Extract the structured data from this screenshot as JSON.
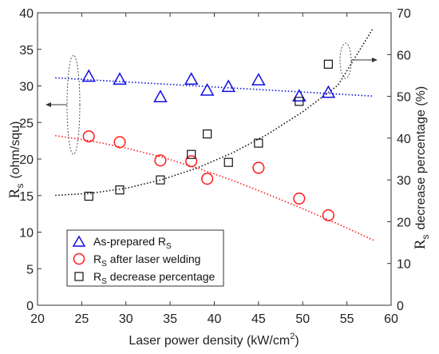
{
  "chart_data": {
    "type": "scatter",
    "xlabel": "Laser power density (kW/cm",
    "xlabel_sup": "2",
    "xlabel_end": ")",
    "ylabel_left": {
      "main": "R",
      "sub": "s",
      "rest": "(ohm/squ)"
    },
    "ylabel_right": {
      "main": "R",
      "sub": "s",
      "rest": "decrease percentage (%)"
    },
    "xlim": [
      20,
      60
    ],
    "ylim_left": [
      0,
      40
    ],
    "ylim_right": [
      0,
      70
    ],
    "xticks": [
      20,
      25,
      30,
      35,
      40,
      45,
      50,
      55,
      60
    ],
    "yticks_left": [
      0,
      5,
      10,
      15,
      20,
      25,
      30,
      35,
      40
    ],
    "yticks_right": [
      0,
      10,
      20,
      30,
      40,
      50,
      60,
      70
    ],
    "legend_position": "bottom-left",
    "series": [
      {
        "name": "As-prepared R",
        "name_sub": "S",
        "axis": "left",
        "marker": "triangle",
        "color": "#1010e0",
        "x": [
          25.8,
          29.3,
          33.9,
          37.4,
          39.2,
          41.6,
          45.0,
          49.6,
          52.9
        ],
        "y": [
          31.3,
          30.9,
          28.5,
          30.9,
          29.4,
          29.9,
          30.8,
          28.6,
          29.1
        ],
        "fit": {
          "x": [
            22,
            58
          ],
          "y": [
            31.1,
            28.6
          ],
          "style": "dotted"
        }
      },
      {
        "name": "R",
        "name_sub": "S",
        "name_rest": "after laser welding",
        "axis": "left",
        "marker": "circle",
        "color": "#ff1a1a",
        "x": [
          25.8,
          29.3,
          33.9,
          37.4,
          39.2,
          45.0,
          49.6,
          52.9
        ],
        "y": [
          23.1,
          22.3,
          19.8,
          19.7,
          17.3,
          18.8,
          14.6,
          12.3
        ],
        "fit": {
          "x": [
            22,
            26,
            30,
            34,
            38,
            42,
            46,
            50,
            54,
            58
          ],
          "y": [
            23.2,
            22.5,
            21.5,
            20.3,
            18.8,
            17.1,
            15.2,
            13.2,
            11.1,
            8.9
          ],
          "style": "dotted"
        }
      },
      {
        "name": "R",
        "name_sub": "S",
        "name_rest": "decrease percentage",
        "axis": "right",
        "marker": "square",
        "color": "#111111",
        "x": [
          25.8,
          29.3,
          33.9,
          37.4,
          39.2,
          41.6,
          45.0,
          49.6,
          52.9
        ],
        "y": [
          26.1,
          27.6,
          30.0,
          36.1,
          41.0,
          34.2,
          38.8,
          48.8,
          57.7
        ],
        "fit": {
          "x": [
            22,
            26,
            30,
            34,
            38,
            42,
            46,
            50,
            54,
            58
          ],
          "y": [
            26.3,
            26.8,
            28.0,
            30.0,
            32.8,
            36.4,
            40.9,
            46.3,
            52.7,
            66.4
          ],
          "style": "dotted"
        }
      }
    ]
  }
}
